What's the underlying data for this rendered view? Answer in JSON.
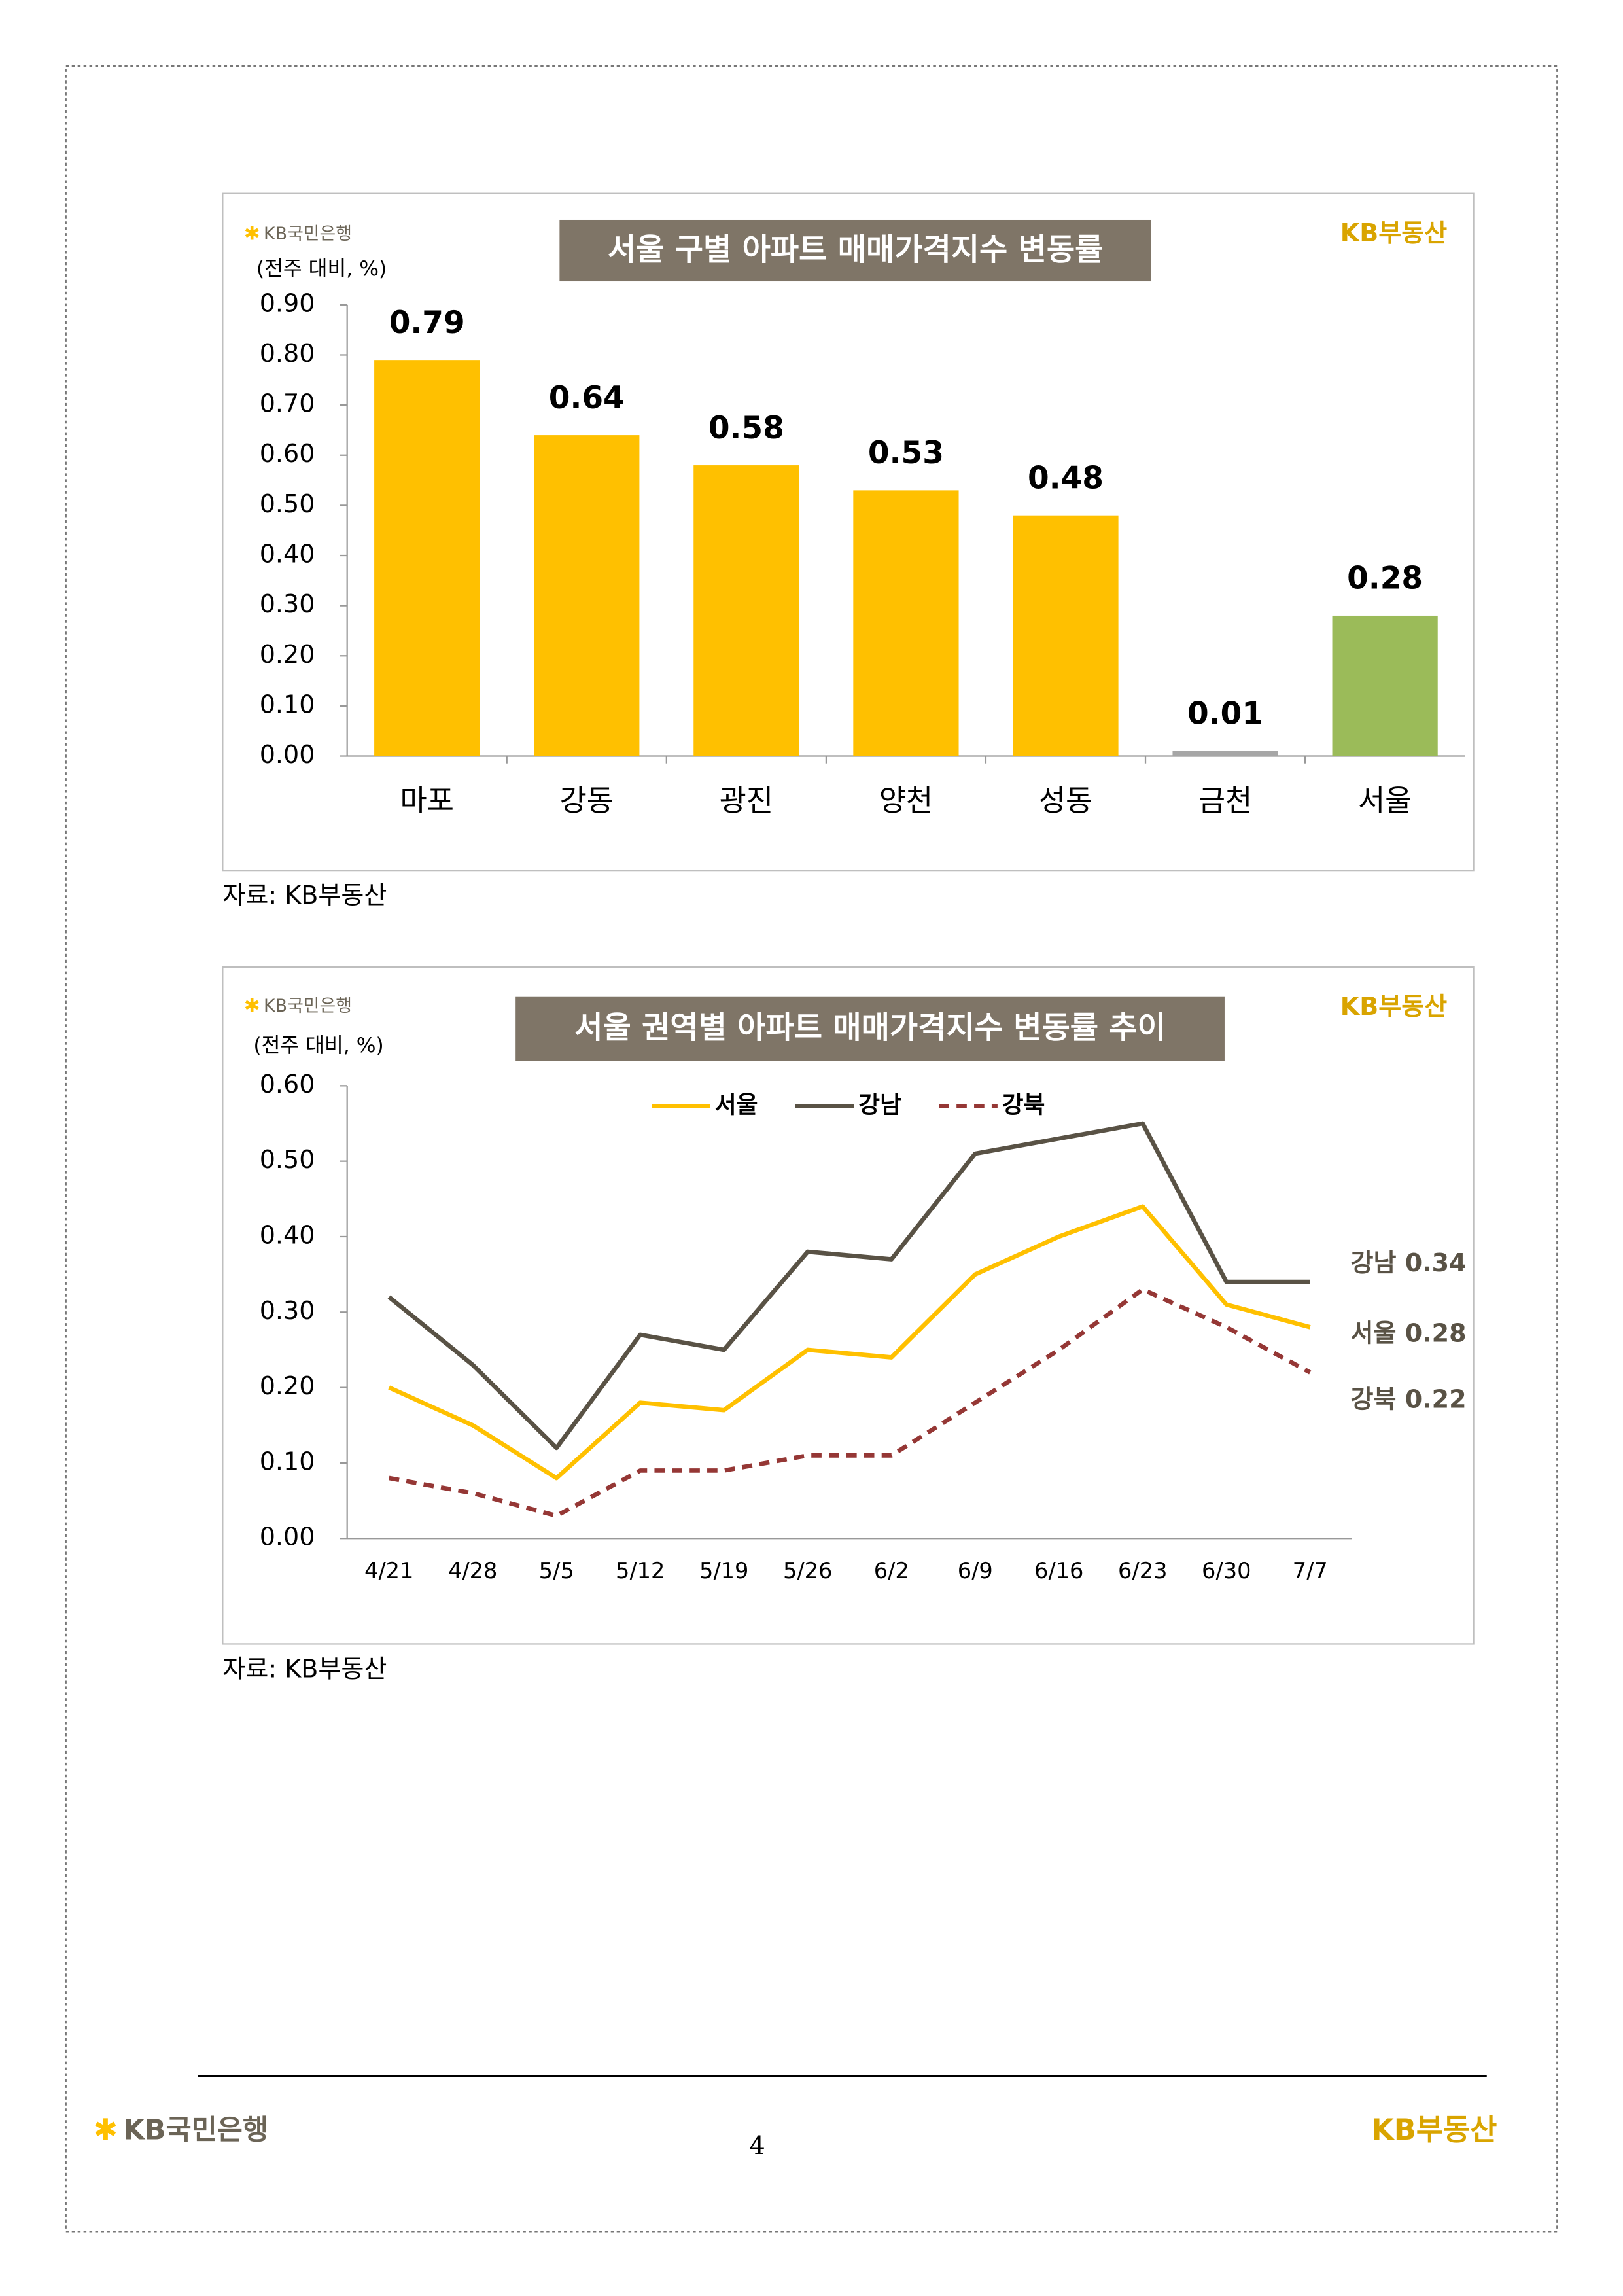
{
  "chart_data": [
    {
      "type": "bar",
      "title": "서울 구별 아파트 매매가격지수 변동률",
      "logo_left": "KB국민은행",
      "logo_right": "KB부동산",
      "unit": "(전주 대비, %)",
      "source": "자료: KB부동산",
      "categories": [
        "마포",
        "강동",
        "광진",
        "양천",
        "성동",
        "금천",
        "서울"
      ],
      "values": [
        0.79,
        0.64,
        0.58,
        0.53,
        0.48,
        0.01,
        0.28
      ],
      "colors": [
        "#FFC000",
        "#FFC000",
        "#FFC000",
        "#FFC000",
        "#FFC000",
        "#A6A6A6",
        "#9BBB59"
      ],
      "ylim": [
        0,
        0.9
      ],
      "yticks": [
        {
          "value": 0,
          "label": "0.00"
        },
        {
          "value": 0.1,
          "label": "0.10"
        },
        {
          "value": 0.2,
          "label": "0.20"
        },
        {
          "value": 0.3,
          "label": "0.30"
        },
        {
          "value": 0.4,
          "label": "0.40"
        },
        {
          "value": 0.5,
          "label": "0.50"
        },
        {
          "value": 0.6,
          "label": "0.60"
        },
        {
          "value": 0.7,
          "label": "0.70"
        },
        {
          "value": 0.8,
          "label": "0.80"
        },
        {
          "value": 0.9,
          "label": "0.90"
        }
      ]
    },
    {
      "type": "line",
      "title": "서울 권역별 아파트 매매가격지수 변동률 추이",
      "logo_left": "KB국민은행",
      "logo_right": "KB부동산",
      "unit": "(전주 대비, %)",
      "source": "자료: KB부동산",
      "categories": [
        "4/21",
        "4/28",
        "5/5",
        "5/12",
        "5/19",
        "5/26",
        "6/2",
        "6/9",
        "6/16",
        "6/23",
        "6/30",
        "7/7"
      ],
      "series": [
        {
          "name": "서울",
          "color": "#FFC000",
          "dashed": false,
          "values": [
            0.2,
            0.15,
            0.08,
            0.18,
            0.17,
            0.25,
            0.24,
            0.35,
            0.4,
            0.44,
            0.31,
            0.28
          ]
        },
        {
          "name": "강남",
          "color": "#595245",
          "dashed": false,
          "values": [
            0.32,
            0.23,
            0.12,
            0.27,
            0.25,
            0.38,
            0.37,
            0.51,
            0.53,
            0.55,
            0.34,
            0.34
          ]
        },
        {
          "name": "강북",
          "color": "#953735",
          "dashed": true,
          "values": [
            0.08,
            0.06,
            0.03,
            0.09,
            0.09,
            0.11,
            0.11,
            0.18,
            0.25,
            0.33,
            0.28,
            0.22
          ]
        }
      ],
      "annotations": [
        "강남 0.34",
        "서울 0.28",
        "강북 0.22"
      ],
      "ylim": [
        0,
        0.6
      ],
      "yticks": [
        {
          "value": 0,
          "label": "0.00"
        },
        {
          "value": 0.1,
          "label": "0.10"
        },
        {
          "value": 0.2,
          "label": "0.20"
        },
        {
          "value": 0.3,
          "label": "0.30"
        },
        {
          "value": 0.4,
          "label": "0.40"
        },
        {
          "value": 0.5,
          "label": "0.50"
        },
        {
          "value": 0.6,
          "label": "0.60"
        }
      ]
    }
  ],
  "footer": {
    "left": "KB국민은행",
    "page": "4",
    "right": "KB부동산"
  }
}
